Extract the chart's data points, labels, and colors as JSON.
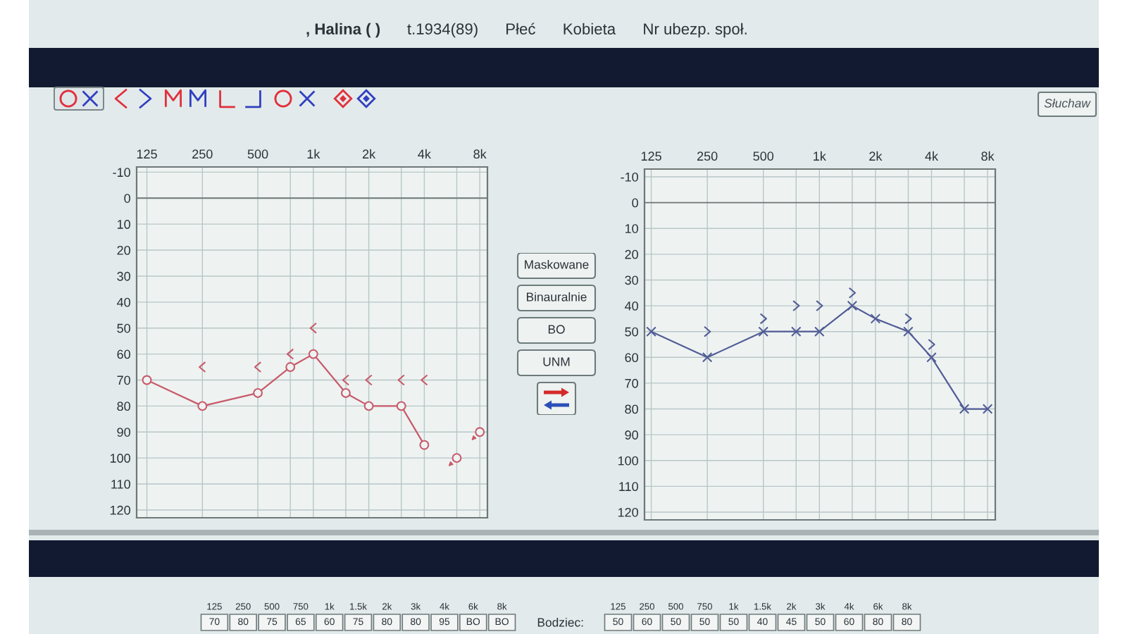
{
  "chart_data": [
    {
      "type": "other",
      "annotations": [
        ", Halina ( )",
        "t.1934(89)",
        "Płeć",
        "Kobieta",
        "Nr ubezp. społ.",
        "Słuchaw"
      ]
    },
    {
      "type": "line",
      "log": "x",
      "xlim": [
        110,
        8800
      ],
      "ylim": [
        123,
        -12
      ],
      "xticks": [
        125,
        250,
        500,
        {
          "value": 750,
          "label": null
        },
        {
          "value": 1000,
          "label": "1k"
        },
        {
          "value": 1500,
          "label": null
        },
        {
          "value": 2000,
          "label": "2k"
        },
        {
          "value": 3000,
          "label": null
        },
        {
          "value": 4000,
          "label": "4k"
        },
        {
          "value": 6000,
          "label": null
        },
        {
          "value": 8000,
          "label": "8k"
        }
      ],
      "yticks": [
        -10,
        0,
        10,
        20,
        30,
        40,
        50,
        60,
        70,
        80,
        90,
        100,
        110,
        120
      ],
      "grid": true,
      "ref_lines": [
        {
          "axis": "y",
          "value": 0,
          "color": "#6f7777"
        }
      ],
      "series": [
        {
          "type": "line",
          "color": "#c85a6a",
          "marker": "circle",
          "x": [
            125,
            250,
            500,
            750,
            1000,
            1500,
            2000,
            3000,
            4000
          ],
          "values": [
            70,
            80,
            75,
            65,
            60,
            75,
            80,
            80,
            95
          ]
        },
        {
          "type": "scatter",
          "color": "#c85a6a",
          "marker": "circle",
          "x": [
            6000,
            8000
          ],
          "values": [
            100,
            90
          ]
        },
        {
          "type": "scatter",
          "color": "#c85a6a",
          "x": [
            250,
            500,
            750,
            1000,
            1500,
            2000,
            3000,
            4000
          ],
          "values": [
            65,
            65,
            60,
            50,
            70,
            70,
            70,
            70
          ]
        }
      ]
    },
    {
      "type": "other",
      "annotations": [
        "Maskowane",
        "Binauralnie",
        "BO",
        "UNM"
      ]
    },
    {
      "type": "line",
      "log": "x",
      "xlim": [
        115,
        8800
      ],
      "ylim": [
        123,
        -13
      ],
      "xticks": [
        125,
        250,
        500,
        {
          "value": 750,
          "label": null
        },
        {
          "value": 1000,
          "label": "1k"
        },
        {
          "value": 1500,
          "label": null
        },
        {
          "value": 2000,
          "label": "2k"
        },
        {
          "value": 3000,
          "label": null
        },
        {
          "value": 4000,
          "label": "4k"
        },
        {
          "value": 6000,
          "label": null
        },
        {
          "value": 8000,
          "label": "8k"
        }
      ],
      "yticks": [
        -10,
        0,
        10,
        20,
        30,
        40,
        50,
        60,
        70,
        80,
        90,
        100,
        110,
        120
      ],
      "grid": true,
      "ref_lines": [
        {
          "axis": "y",
          "value": 0,
          "color": "#6f7777"
        }
      ],
      "series": [
        {
          "type": "line",
          "color": "#525c96",
          "marker": "cross",
          "x": [
            125,
            250,
            500,
            750,
            1000,
            1500,
            2000,
            3000,
            4000,
            6000,
            8000
          ],
          "values": [
            50,
            60,
            50,
            50,
            50,
            40,
            45,
            50,
            60,
            80,
            80
          ]
        },
        {
          "type": "scatter",
          "color": "#525c96",
          "x": [
            250,
            500,
            750,
            1000,
            1500,
            3000,
            4000
          ],
          "values": [
            50,
            45,
            40,
            40,
            35,
            45,
            55
          ]
        }
      ]
    },
    {
      "type": "other",
      "categories": [
        "125",
        "250",
        "500",
        "750",
        "1k",
        "1.5k",
        "2k",
        "3k",
        "4k",
        "6k",
        "8k"
      ],
      "value_labels": [
        "70",
        "80",
        "75",
        "65",
        "60",
        "75",
        "80",
        "80",
        "95",
        "BO",
        "BO"
      ]
    },
    {
      "type": "other",
      "categories": [
        "125",
        "250",
        "500",
        "750",
        "1k",
        "1.5k",
        "2k",
        "3k",
        "4k",
        "6k",
        "8k"
      ],
      "value_labels": [
        "50",
        "60",
        "50",
        "50",
        "50",
        "40",
        "45",
        "50",
        "60",
        "80",
        "80"
      ],
      "annotations": [
        "Bodziec:"
      ]
    }
  ]
}
